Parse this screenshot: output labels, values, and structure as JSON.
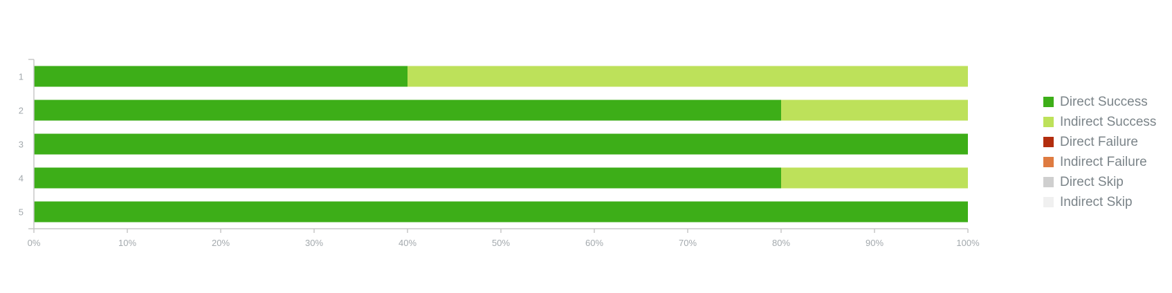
{
  "chart_data": {
    "type": "bar",
    "orientation": "horizontal",
    "stacked": true,
    "percent_stacked": true,
    "categories": [
      "1",
      "2",
      "3",
      "4",
      "5"
    ],
    "series": [
      {
        "name": "Direct Success",
        "color": "#3dae18",
        "values": [
          40,
          80,
          100,
          80,
          100
        ]
      },
      {
        "name": "Indirect Success",
        "color": "#bde15a",
        "values": [
          60,
          20,
          0,
          20,
          0
        ]
      },
      {
        "name": "Direct Failure",
        "color": "#b22d0e",
        "values": [
          0,
          0,
          0,
          0,
          0
        ]
      },
      {
        "name": "Indirect Failure",
        "color": "#de7b41",
        "values": [
          0,
          0,
          0,
          0,
          0
        ]
      },
      {
        "name": "Direct Skip",
        "color": "#cfcfcf",
        "values": [
          0,
          0,
          0,
          0,
          0
        ]
      },
      {
        "name": "Indirect Skip",
        "color": "#f0f0f0",
        "values": [
          0,
          0,
          0,
          0,
          0
        ]
      }
    ],
    "xlim": [
      0,
      100
    ],
    "xticks": [
      "0%",
      "10%",
      "20%",
      "30%",
      "40%",
      "50%",
      "60%",
      "70%",
      "80%",
      "90%",
      "100%"
    ],
    "grid": false,
    "legend_position": "right"
  }
}
